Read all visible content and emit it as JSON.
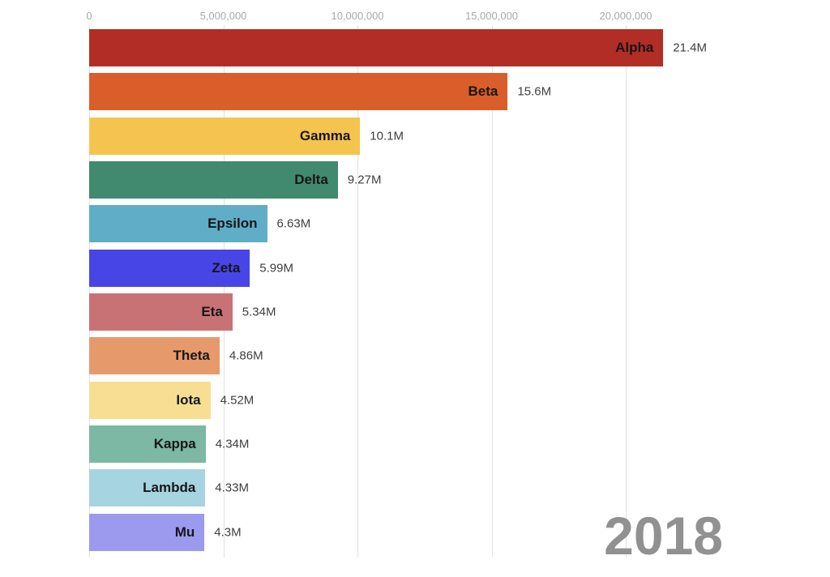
{
  "chart_data": {
    "type": "bar",
    "orientation": "horizontal",
    "title": "",
    "xlabel": "",
    "ylabel": "",
    "year_label": "2018",
    "legend": "none",
    "axis": {
      "position": "top",
      "tick_labels": [
        "0",
        "5,000,000",
        "10,000,000",
        "15,000,000",
        "20,000,000"
      ],
      "tick_values": [
        0,
        5000000,
        10000000,
        15000000,
        20000000
      ],
      "range": [
        0,
        21400000
      ],
      "grid": true
    },
    "bars": [
      {
        "name": "Alpha",
        "value": 21400000,
        "value_label": "21.4M",
        "color": "#b22d25"
      },
      {
        "name": "Beta",
        "value": 15600000,
        "value_label": "15.6M",
        "color": "#d95e29"
      },
      {
        "name": "Gamma",
        "value": 10100000,
        "value_label": "10.1M",
        "color": "#f4c44e"
      },
      {
        "name": "Delta",
        "value": 9270000,
        "value_label": "9.27M",
        "color": "#41896f"
      },
      {
        "name": "Epsilon",
        "value": 6630000,
        "value_label": "6.63M",
        "color": "#5fadc6"
      },
      {
        "name": "Zeta",
        "value": 5990000,
        "value_label": "5.99M",
        "color": "#4845e6"
      },
      {
        "name": "Eta",
        "value": 5340000,
        "value_label": "5.34M",
        "color": "#c97275"
      },
      {
        "name": "Theta",
        "value": 4860000,
        "value_label": "4.86M",
        "color": "#e69a6c"
      },
      {
        "name": "Iota",
        "value": 4520000,
        "value_label": "4.52M",
        "color": "#f7de92"
      },
      {
        "name": "Kappa",
        "value": 4340000,
        "value_label": "4.34M",
        "color": "#7cb8a3"
      },
      {
        "name": "Lambda",
        "value": 4330000,
        "value_label": "4.33M",
        "color": "#a6d4e1"
      },
      {
        "name": "Mu",
        "value": 4300000,
        "value_label": "4.3M",
        "color": "#9b9aef"
      }
    ],
    "colors": {
      "grid": "#e1e1e1",
      "tick_label": "#a9a9a9",
      "bar_name": "#161616",
      "value_label": "#3f3f3f",
      "year": "#919191",
      "background": "#ffffff"
    }
  }
}
